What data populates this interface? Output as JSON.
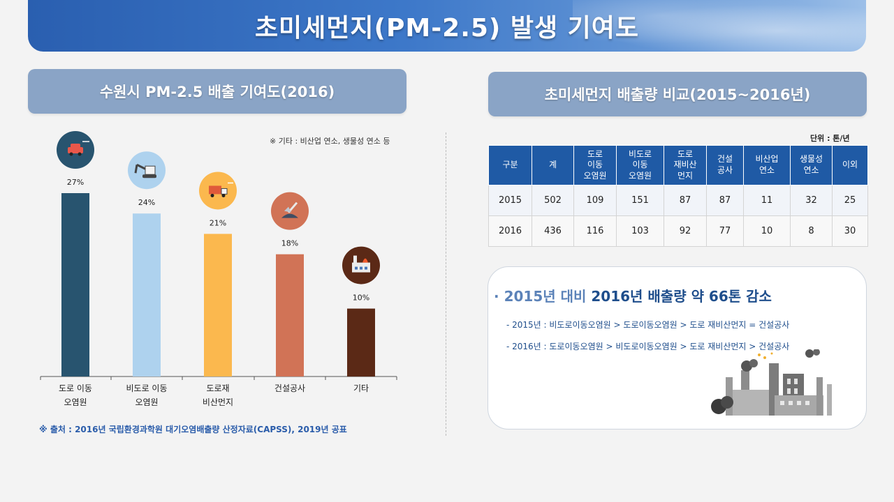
{
  "page_title": "초미세먼지(PM-2.5) 발생 기여도",
  "left_section": {
    "title": "수원시 PM-2.5 배출 기여도(2016)",
    "note": "※ 기타 :  비산업 연소, 생물성 연소  등",
    "source": "※ 출처 : 2016년 국립환경과학원  대기오염배출량 산정자료(CAPSS),  2019년  공표"
  },
  "chart_data": {
    "type": "bar",
    "title": "수원시 PM-2.5 배출 기여도(2016)",
    "categories": [
      [
        "도로 이동",
        "오염원"
      ],
      [
        "비도로 이동",
        "오염원"
      ],
      [
        "도로재",
        "비산먼지"
      ],
      [
        "건설공사"
      ],
      [
        "기타"
      ]
    ],
    "values": [
      27,
      24,
      21,
      18,
      10
    ],
    "value_labels": [
      "27%",
      "24%",
      "21%",
      "18%",
      "10%"
    ],
    "colors": [
      "#28546f",
      "#aed2ee",
      "#fbb84e",
      "#d17356",
      "#5b2916"
    ],
    "icons": [
      "car-icon",
      "excavator-icon",
      "truck-icon",
      "shovel-icon",
      "factory-icon"
    ],
    "icon_colors": [
      "#28546f",
      "#aed2ee",
      "#fbb84e",
      "#d17356",
      "#5b2916"
    ],
    "ylim": [
      0,
      30
    ],
    "xlabel": "",
    "ylabel": "",
    "unit": "%"
  },
  "right_section": {
    "title": "초미세먼지 배출량 비교(2015~2016년)",
    "unit": "단위 : 톤/년",
    "table": {
      "headers": [
        "구분",
        "계",
        "도로\n이동\n오염원",
        "비도로\n이동\n오염원",
        "도로\n재비산\n먼지",
        "건설\n공사",
        "비산업\n연소",
        "생물성\n연소",
        "이외"
      ],
      "rows": [
        [
          "2015",
          "502",
          "109",
          "151",
          "87",
          "87",
          "11",
          "32",
          "25"
        ],
        [
          "2016",
          "436",
          "116",
          "103",
          "92",
          "77",
          "10",
          "8",
          "30"
        ]
      ]
    },
    "summary": {
      "bullet": "·",
      "title_part1": "2015년 대비 ",
      "title_part2": "2016년 배출량 약 66톤 감소",
      "line1": "- 2015년 : 비도로이동오염원 > 도로이동오염원 >  도로 재비산먼지 = 건설공사",
      "line2": "- 2016년 : 도로이동오염원 > 비도로이동오염원 >  도로 재비산먼지 > 건설공사"
    }
  }
}
